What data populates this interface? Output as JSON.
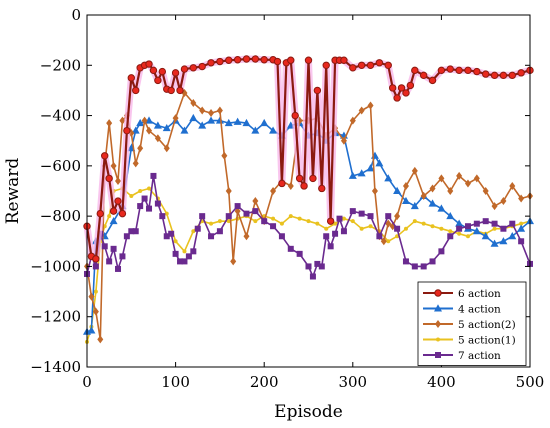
{
  "chart_data": {
    "type": "line",
    "title": "",
    "xlabel": "Episode",
    "ylabel": "Reward",
    "xlim": [
      0,
      500
    ],
    "ylim": [
      -1400,
      0
    ],
    "xticks": [
      0,
      100,
      200,
      300,
      400,
      500
    ],
    "yticks": [
      0,
      -200,
      -400,
      -600,
      -800,
      -1000,
      -1200,
      -1400
    ],
    "grid": false,
    "legend_position": "bottom-right",
    "series": [
      {
        "name": "6 action",
        "color": "#e8281e",
        "edge_color": "#8b1a10",
        "marker": "circle",
        "points": [
          [
            0,
            -840
          ],
          [
            5,
            -960
          ],
          [
            10,
            -970
          ],
          [
            15,
            -790
          ],
          [
            20,
            -560
          ],
          [
            25,
            -650
          ],
          [
            30,
            -780
          ],
          [
            35,
            -740
          ],
          [
            40,
            -790
          ],
          [
            45,
            -460
          ],
          [
            50,
            -250
          ],
          [
            55,
            -300
          ],
          [
            60,
            -210
          ],
          [
            65,
            -200
          ],
          [
            70,
            -195
          ],
          [
            75,
            -220
          ],
          [
            80,
            -260
          ],
          [
            85,
            -225
          ],
          [
            90,
            -295
          ],
          [
            95,
            -300
          ],
          [
            100,
            -230
          ],
          [
            105,
            -300
          ],
          [
            110,
            -215
          ],
          [
            120,
            -210
          ],
          [
            130,
            -205
          ],
          [
            140,
            -190
          ],
          [
            150,
            -185
          ],
          [
            160,
            -180
          ],
          [
            170,
            -178
          ],
          [
            180,
            -175
          ],
          [
            190,
            -175
          ],
          [
            200,
            -178
          ],
          [
            210,
            -178
          ],
          [
            215,
            -185
          ],
          [
            220,
            -670
          ],
          [
            225,
            -190
          ],
          [
            230,
            -180
          ],
          [
            235,
            -400
          ],
          [
            240,
            -650
          ],
          [
            245,
            -680
          ],
          [
            250,
            -180
          ],
          [
            255,
            -650
          ],
          [
            260,
            -300
          ],
          [
            265,
            -690
          ],
          [
            270,
            -200
          ],
          [
            275,
            -820
          ],
          [
            280,
            -180
          ],
          [
            285,
            -180
          ],
          [
            290,
            -180
          ],
          [
            300,
            -210
          ],
          [
            310,
            -200
          ],
          [
            320,
            -200
          ],
          [
            330,
            -190
          ],
          [
            340,
            -200
          ],
          [
            345,
            -290
          ],
          [
            350,
            -330
          ],
          [
            355,
            -290
          ],
          [
            360,
            -310
          ],
          [
            365,
            -280
          ],
          [
            370,
            -220
          ],
          [
            380,
            -240
          ],
          [
            390,
            -260
          ],
          [
            400,
            -220
          ],
          [
            410,
            -215
          ],
          [
            420,
            -220
          ],
          [
            430,
            -220
          ],
          [
            440,
            -225
          ],
          [
            450,
            -235
          ],
          [
            460,
            -240
          ],
          [
            470,
            -240
          ],
          [
            480,
            -240
          ],
          [
            490,
            -230
          ],
          [
            500,
            -220
          ]
        ]
      },
      {
        "name": "4 action",
        "color": "#1f6fcf",
        "marker": "triangle",
        "points": [
          [
            0,
            -1260
          ],
          [
            5,
            -1255
          ],
          [
            10,
            -900
          ],
          [
            20,
            -880
          ],
          [
            30,
            -820
          ],
          [
            40,
            -760
          ],
          [
            50,
            -530
          ],
          [
            55,
            -460
          ],
          [
            60,
            -430
          ],
          [
            70,
            -420
          ],
          [
            80,
            -440
          ],
          [
            90,
            -450
          ],
          [
            100,
            -420
          ],
          [
            110,
            -460
          ],
          [
            120,
            -410
          ],
          [
            130,
            -440
          ],
          [
            140,
            -420
          ],
          [
            150,
            -420
          ],
          [
            160,
            -430
          ],
          [
            170,
            -425
          ],
          [
            180,
            -430
          ],
          [
            190,
            -460
          ],
          [
            200,
            -430
          ],
          [
            210,
            -460
          ],
          [
            220,
            -480
          ],
          [
            230,
            -440
          ],
          [
            240,
            -430
          ],
          [
            250,
            -480
          ],
          [
            260,
            -470
          ],
          [
            270,
            -500
          ],
          [
            280,
            -470
          ],
          [
            290,
            -480
          ],
          [
            300,
            -640
          ],
          [
            310,
            -630
          ],
          [
            320,
            -610
          ],
          [
            325,
            -560
          ],
          [
            330,
            -590
          ],
          [
            340,
            -650
          ],
          [
            350,
            -700
          ],
          [
            360,
            -740
          ],
          [
            370,
            -760
          ],
          [
            380,
            -720
          ],
          [
            390,
            -750
          ],
          [
            400,
            -770
          ],
          [
            410,
            -800
          ],
          [
            420,
            -830
          ],
          [
            430,
            -850
          ],
          [
            440,
            -860
          ],
          [
            450,
            -880
          ],
          [
            460,
            -910
          ],
          [
            470,
            -900
          ],
          [
            480,
            -880
          ],
          [
            490,
            -850
          ],
          [
            500,
            -820
          ]
        ]
      },
      {
        "name": "5 action(2)",
        "color": "#c1692a",
        "marker": "diamond",
        "points": [
          [
            0,
            -1000
          ],
          [
            5,
            -1120
          ],
          [
            10,
            -1180
          ],
          [
            15,
            -1290
          ],
          [
            20,
            -600
          ],
          [
            25,
            -430
          ],
          [
            30,
            -600
          ],
          [
            35,
            -660
          ],
          [
            40,
            -420
          ],
          [
            45,
            -400
          ],
          [
            50,
            -470
          ],
          [
            55,
            -590
          ],
          [
            60,
            -530
          ],
          [
            65,
            -420
          ],
          [
            70,
            -460
          ],
          [
            80,
            -490
          ],
          [
            90,
            -530
          ],
          [
            100,
            -410
          ],
          [
            110,
            -310
          ],
          [
            120,
            -350
          ],
          [
            130,
            -380
          ],
          [
            140,
            -390
          ],
          [
            150,
            -380
          ],
          [
            155,
            -560
          ],
          [
            160,
            -700
          ],
          [
            165,
            -980
          ],
          [
            170,
            -780
          ],
          [
            180,
            -880
          ],
          [
            190,
            -740
          ],
          [
            200,
            -820
          ],
          [
            210,
            -700
          ],
          [
            220,
            -660
          ],
          [
            230,
            -680
          ],
          [
            240,
            -420
          ],
          [
            250,
            -420
          ],
          [
            260,
            -410
          ],
          [
            270,
            -480
          ],
          [
            280,
            -450
          ],
          [
            290,
            -500
          ],
          [
            300,
            -420
          ],
          [
            310,
            -380
          ],
          [
            320,
            -360
          ],
          [
            325,
            -700
          ],
          [
            330,
            -880
          ],
          [
            335,
            -900
          ],
          [
            340,
            -830
          ],
          [
            345,
            -840
          ],
          [
            350,
            -800
          ],
          [
            360,
            -680
          ],
          [
            370,
            -620
          ],
          [
            380,
            -720
          ],
          [
            390,
            -690
          ],
          [
            400,
            -650
          ],
          [
            410,
            -700
          ],
          [
            420,
            -640
          ],
          [
            430,
            -670
          ],
          [
            440,
            -650
          ],
          [
            450,
            -700
          ],
          [
            460,
            -760
          ],
          [
            470,
            -740
          ],
          [
            480,
            -680
          ],
          [
            490,
            -730
          ],
          [
            500,
            -720
          ]
        ]
      },
      {
        "name": "5 action(1)",
        "color": "#e9c21f",
        "marker": "dot",
        "points": [
          [
            0,
            -1300
          ],
          [
            5,
            -1240
          ],
          [
            10,
            -1100
          ],
          [
            15,
            -900
          ],
          [
            20,
            -840
          ],
          [
            25,
            -800
          ],
          [
            30,
            -700
          ],
          [
            40,
            -690
          ],
          [
            50,
            -720
          ],
          [
            60,
            -700
          ],
          [
            70,
            -690
          ],
          [
            80,
            -730
          ],
          [
            90,
            -790
          ],
          [
            100,
            -900
          ],
          [
            110,
            -940
          ],
          [
            120,
            -860
          ],
          [
            130,
            -820
          ],
          [
            140,
            -830
          ],
          [
            150,
            -820
          ],
          [
            160,
            -820
          ],
          [
            170,
            -810
          ],
          [
            180,
            -800
          ],
          [
            190,
            -820
          ],
          [
            200,
            -800
          ],
          [
            210,
            -810
          ],
          [
            220,
            -830
          ],
          [
            230,
            -800
          ],
          [
            240,
            -810
          ],
          [
            250,
            -820
          ],
          [
            260,
            -830
          ],
          [
            270,
            -850
          ],
          [
            280,
            -830
          ],
          [
            290,
            -810
          ],
          [
            300,
            -820
          ],
          [
            310,
            -850
          ],
          [
            320,
            -840
          ],
          [
            330,
            -860
          ],
          [
            340,
            -900
          ],
          [
            350,
            -880
          ],
          [
            360,
            -850
          ],
          [
            370,
            -820
          ],
          [
            380,
            -830
          ],
          [
            390,
            -840
          ],
          [
            400,
            -850
          ],
          [
            410,
            -860
          ],
          [
            420,
            -870
          ],
          [
            430,
            -880
          ],
          [
            440,
            -860
          ],
          [
            450,
            -870
          ],
          [
            460,
            -850
          ],
          [
            470,
            -850
          ],
          [
            480,
            -840
          ],
          [
            490,
            -830
          ],
          [
            500,
            -820
          ]
        ]
      },
      {
        "name": "7 action",
        "color": "#6a2a8f",
        "marker": "square",
        "points": [
          [
            0,
            -1030
          ],
          [
            5,
            -960
          ],
          [
            10,
            -1000
          ],
          [
            15,
            -870
          ],
          [
            20,
            -920
          ],
          [
            25,
            -980
          ],
          [
            30,
            -930
          ],
          [
            35,
            -1010
          ],
          [
            40,
            -960
          ],
          [
            45,
            -880
          ],
          [
            50,
            -860
          ],
          [
            55,
            -860
          ],
          [
            60,
            -760
          ],
          [
            65,
            -730
          ],
          [
            70,
            -770
          ],
          [
            75,
            -640
          ],
          [
            80,
            -750
          ],
          [
            85,
            -800
          ],
          [
            90,
            -880
          ],
          [
            95,
            -870
          ],
          [
            100,
            -950
          ],
          [
            105,
            -980
          ],
          [
            110,
            -980
          ],
          [
            115,
            -960
          ],
          [
            120,
            -940
          ],
          [
            125,
            -850
          ],
          [
            130,
            -800
          ],
          [
            140,
            -880
          ],
          [
            150,
            -860
          ],
          [
            160,
            -800
          ],
          [
            170,
            -760
          ],
          [
            180,
            -790
          ],
          [
            190,
            -780
          ],
          [
            200,
            -820
          ],
          [
            210,
            -840
          ],
          [
            220,
            -880
          ],
          [
            230,
            -930
          ],
          [
            240,
            -950
          ],
          [
            250,
            -1000
          ],
          [
            255,
            -1040
          ],
          [
            260,
            -990
          ],
          [
            265,
            -1000
          ],
          [
            270,
            -880
          ],
          [
            275,
            -920
          ],
          [
            280,
            -870
          ],
          [
            285,
            -810
          ],
          [
            290,
            -860
          ],
          [
            300,
            -780
          ],
          [
            310,
            -790
          ],
          [
            320,
            -800
          ],
          [
            330,
            -880
          ],
          [
            340,
            -800
          ],
          [
            350,
            -850
          ],
          [
            360,
            -980
          ],
          [
            370,
            -1000
          ],
          [
            380,
            -1000
          ],
          [
            390,
            -980
          ],
          [
            400,
            -940
          ],
          [
            410,
            -880
          ],
          [
            420,
            -850
          ],
          [
            430,
            -840
          ],
          [
            440,
            -830
          ],
          [
            450,
            -820
          ],
          [
            460,
            -830
          ],
          [
            470,
            -850
          ],
          [
            480,
            -830
          ],
          [
            490,
            -900
          ],
          [
            500,
            -990
          ]
        ]
      }
    ]
  }
}
